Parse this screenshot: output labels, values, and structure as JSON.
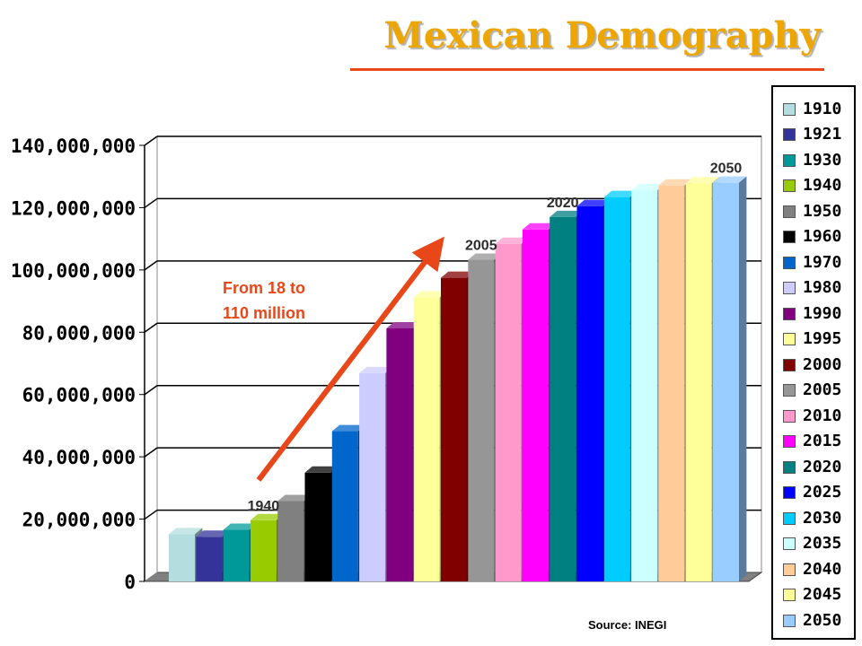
{
  "title": "Mexican Demography",
  "source": "Source: INEGI",
  "arrow_text_line1": "From 18 to",
  "arrow_text_line2": "110 million",
  "chart_data": {
    "type": "bar",
    "title": "Mexican Demography",
    "categories": [
      "1910",
      "1921",
      "1930",
      "1940",
      "1950",
      "1960",
      "1970",
      "1980",
      "1990",
      "1995",
      "2000",
      "2005",
      "2010",
      "2015",
      "2020",
      "2025",
      "2030",
      "2035",
      "2040",
      "2045",
      "2050"
    ],
    "values": [
      15160000,
      14330000,
      16550000,
      19650000,
      25790000,
      34920000,
      48230000,
      66850000,
      81250000,
      91160000,
      97480000,
      103260000,
      108400000,
      113000000,
      117000000,
      120500000,
      123400000,
      125600000,
      127100000,
      127800000,
      128000000
    ],
    "colors": [
      "#b4dde0",
      "#333399",
      "#009999",
      "#99cc00",
      "#808080",
      "#000000",
      "#0066cc",
      "#ccccff",
      "#800080",
      "#ffff99",
      "#800000",
      "#969696",
      "#ff99cc",
      "#ff00ff",
      "#008080",
      "#0000ff",
      "#00ccff",
      "#ccffff",
      "#ffcc99",
      "#ffff99",
      "#99ccff"
    ],
    "y_ticks": [
      "0",
      "20,000,000",
      "40,000,000",
      "60,000,000",
      "80,000,000",
      "100,000,000",
      "120,000,000",
      "140,000,000"
    ],
    "ylim": [
      0,
      140000000
    ],
    "grid": true,
    "legend_position": "right",
    "bar_labels": [
      {
        "category": "1940",
        "text": "1940"
      },
      {
        "category": "2005",
        "text": "2005"
      },
      {
        "category": "2020",
        "text": "2020"
      },
      {
        "category": "2050",
        "text": "2050"
      }
    ],
    "annotation": "From 18 to 110 million"
  }
}
